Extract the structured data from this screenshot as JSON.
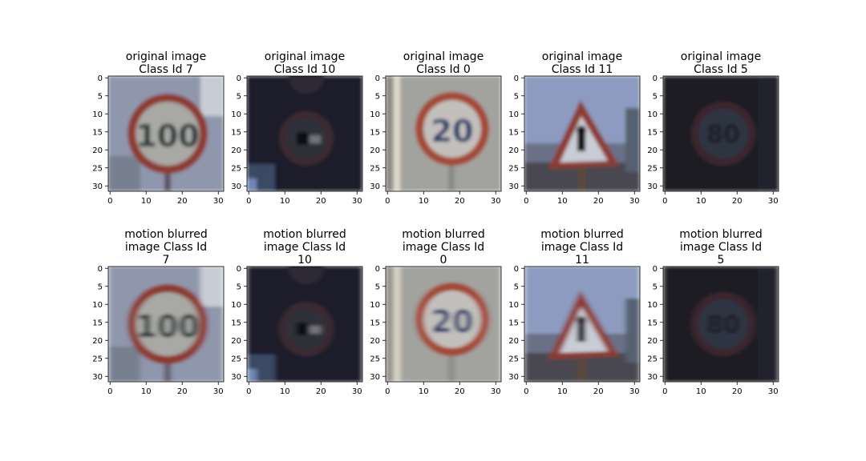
{
  "figure": {
    "background": "#ffffff"
  },
  "chart_data": [
    {
      "type": "image",
      "row": "original",
      "title": [
        "original image",
        "Class Id 7"
      ],
      "image_content": "speed limit 100 sign",
      "xlim": [
        0,
        31
      ],
      "ylim": [
        31,
        0
      ],
      "xticks": [
        0,
        10,
        20,
        30
      ],
      "yticks": [
        0,
        5,
        10,
        15,
        20,
        25,
        30
      ]
    },
    {
      "type": "image",
      "row": "original",
      "title": [
        "original image",
        "Class Id 10"
      ],
      "image_content": "no overtaking sign (dark)",
      "xlim": [
        0,
        31
      ],
      "ylim": [
        31,
        0
      ],
      "xticks": [
        0,
        10,
        20,
        30
      ],
      "yticks": [
        0,
        5,
        10,
        15,
        20,
        25,
        30
      ]
    },
    {
      "type": "image",
      "row": "original",
      "title": [
        "original image",
        "Class Id 0"
      ],
      "image_content": "speed limit 20 sign",
      "xlim": [
        0,
        31
      ],
      "ylim": [
        31,
        0
      ],
      "xticks": [
        0,
        10,
        20,
        30
      ],
      "yticks": [
        0,
        5,
        10,
        15,
        20,
        25,
        30
      ]
    },
    {
      "type": "image",
      "row": "original",
      "title": [
        "original image",
        "Class Id 11"
      ],
      "image_content": "triangular warning sign",
      "xlim": [
        0,
        31
      ],
      "ylim": [
        31,
        0
      ],
      "xticks": [
        0,
        10,
        20,
        30
      ],
      "yticks": [
        0,
        5,
        10,
        15,
        20,
        25,
        30
      ]
    },
    {
      "type": "image",
      "row": "original",
      "title": [
        "original image",
        "Class Id 5"
      ],
      "image_content": "speed limit 80 sign (dark)",
      "xlim": [
        0,
        31
      ],
      "ylim": [
        31,
        0
      ],
      "xticks": [
        0,
        10,
        20,
        30
      ],
      "yticks": [
        0,
        5,
        10,
        15,
        20,
        25,
        30
      ]
    },
    {
      "type": "image",
      "row": "blurred",
      "title": [
        "motion blurred",
        "image Class Id",
        "7"
      ],
      "image_content": "speed limit 100 sign, motion blurred",
      "xlim": [
        0,
        31
      ],
      "ylim": [
        31,
        0
      ],
      "xticks": [
        0,
        10,
        20,
        30
      ],
      "yticks": [
        0,
        5,
        10,
        15,
        20,
        25,
        30
      ]
    },
    {
      "type": "image",
      "row": "blurred",
      "title": [
        "motion blurred",
        "image Class Id",
        "10"
      ],
      "image_content": "no overtaking sign, motion blurred",
      "xlim": [
        0,
        31
      ],
      "ylim": [
        31,
        0
      ],
      "xticks": [
        0,
        10,
        20,
        30
      ],
      "yticks": [
        0,
        5,
        10,
        15,
        20,
        25,
        30
      ]
    },
    {
      "type": "image",
      "row": "blurred",
      "title": [
        "motion blurred",
        "image Class Id",
        "0"
      ],
      "image_content": "speed limit 20 sign, motion blurred",
      "xlim": [
        0,
        31
      ],
      "ylim": [
        31,
        0
      ],
      "xticks": [
        0,
        10,
        20,
        30
      ],
      "yticks": [
        0,
        5,
        10,
        15,
        20,
        25,
        30
      ]
    },
    {
      "type": "image",
      "row": "blurred",
      "title": [
        "motion blurred",
        "image Class Id",
        "11"
      ],
      "image_content": "triangular warning sign, motion blurred",
      "xlim": [
        0,
        31
      ],
      "ylim": [
        31,
        0
      ],
      "xticks": [
        0,
        10,
        20,
        30
      ],
      "yticks": [
        0,
        5,
        10,
        15,
        20,
        25,
        30
      ]
    },
    {
      "type": "image",
      "row": "blurred",
      "title": [
        "motion blurred",
        "image Class Id",
        "5"
      ],
      "image_content": "speed limit 80 sign, motion blurred",
      "xlim": [
        0,
        31
      ],
      "ylim": [
        31,
        0
      ],
      "xticks": [
        0,
        10,
        20,
        30
      ],
      "yticks": [
        0,
        5,
        10,
        15,
        20,
        25,
        30
      ]
    }
  ],
  "palette": {
    "sky_blue": "#8d98b4",
    "sign_red": "#8e3a2e",
    "sign_fill": "#a8a8a4",
    "dark_bg": "#1b1b24",
    "ink": "#2d3a3a"
  }
}
